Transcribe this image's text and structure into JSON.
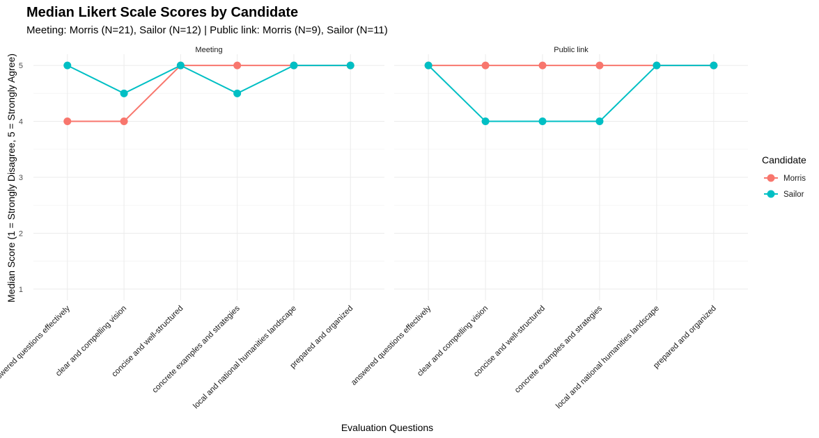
{
  "chart_data": {
    "type": "line",
    "title": "Median Likert Scale Scores by Candidate",
    "subtitle": "Meeting: Morris (N=21), Sailor (N=12) | Public link: Morris (N=9), Sailor (N=11)",
    "xlabel": "Evaluation Questions",
    "ylabel": "Median Score (1 = Strongly Disagree, 5 = Strongly Agree)",
    "ylim": [
      1,
      5
    ],
    "yticks": [
      1,
      2,
      3,
      4,
      5
    ],
    "grid": true,
    "legend": {
      "title": "Candidate",
      "position": "right"
    },
    "categories": [
      "answered questions effectively",
      "clear and compelling vision",
      "concise and well-structured",
      "concrete examples and strategies",
      "local and national humanities landscape",
      "prepared and organized"
    ],
    "colors": {
      "Morris": "#F8766D",
      "Sailor": "#00BFC4"
    },
    "panels": [
      {
        "label": "Meeting",
        "series": [
          {
            "name": "Morris",
            "values": [
              4,
              4,
              5,
              5,
              5,
              5
            ]
          },
          {
            "name": "Sailor",
            "values": [
              5,
              4.5,
              5,
              4.5,
              5,
              5
            ]
          }
        ]
      },
      {
        "label": "Public link",
        "series": [
          {
            "name": "Morris",
            "values": [
              5,
              5,
              5,
              5,
              5,
              5
            ]
          },
          {
            "name": "Sailor",
            "values": [
              5,
              4,
              4,
              4,
              5,
              5
            ]
          }
        ]
      }
    ]
  }
}
